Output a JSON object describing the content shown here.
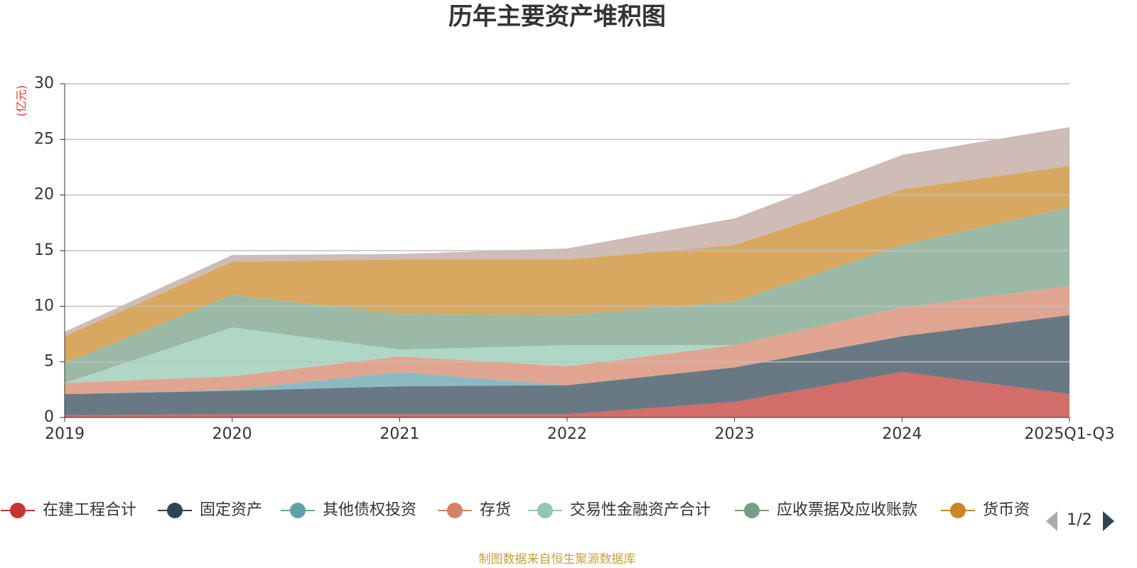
{
  "chart_data": {
    "type": "stacked_area",
    "title": "历年主要资产堆积图",
    "y_unit": "(亿元)",
    "categories": [
      "2019",
      "2020",
      "2021",
      "2022",
      "2023",
      "2024",
      "2025Q1-Q3"
    ],
    "ylim": [
      0,
      30
    ],
    "yticks": [
      0,
      5,
      10,
      15,
      20,
      25,
      30
    ],
    "grid": true,
    "series": [
      {
        "name": "在建工程合计",
        "color": "#c23531",
        "values": [
          0.2,
          0.3,
          0.3,
          0.3,
          1.4,
          4.1,
          2.1
        ]
      },
      {
        "name": "固定资产",
        "color": "#2f4554",
        "values": [
          1.9,
          2.1,
          2.5,
          2.6,
          3.1,
          3.2,
          7.1
        ]
      },
      {
        "name": "其他债权投资",
        "color": "#61a0a8",
        "values": [
          0,
          0.1,
          1.3,
          0,
          0,
          0,
          0
        ]
      },
      {
        "name": "存货",
        "color": "#d48265",
        "values": [
          1.0,
          1.2,
          1.4,
          1.7,
          2.0,
          2.6,
          2.6
        ]
      },
      {
        "name": "交易性金融资产合计",
        "color": "#91c7ae",
        "values": [
          0,
          4.4,
          0.6,
          1.9,
          0,
          0,
          0
        ]
      },
      {
        "name": "应收票据及应收账款",
        "color": "#749f83",
        "values": [
          1.8,
          2.9,
          3.2,
          2.7,
          3.9,
          5.6,
          7.1
        ]
      },
      {
        "name": "货币资",
        "color": "#ca8622",
        "values": [
          2.4,
          3.0,
          4.9,
          5.0,
          5.1,
          5.0,
          3.7
        ]
      },
      {
        "name": null,
        "color": "#bda29a",
        "values": [
          0.4,
          0.6,
          0.5,
          1.0,
          2.4,
          3.1,
          3.5
        ]
      }
    ],
    "legend_page": "1/2",
    "source": "制图数据来自恒生聚源数据库"
  }
}
